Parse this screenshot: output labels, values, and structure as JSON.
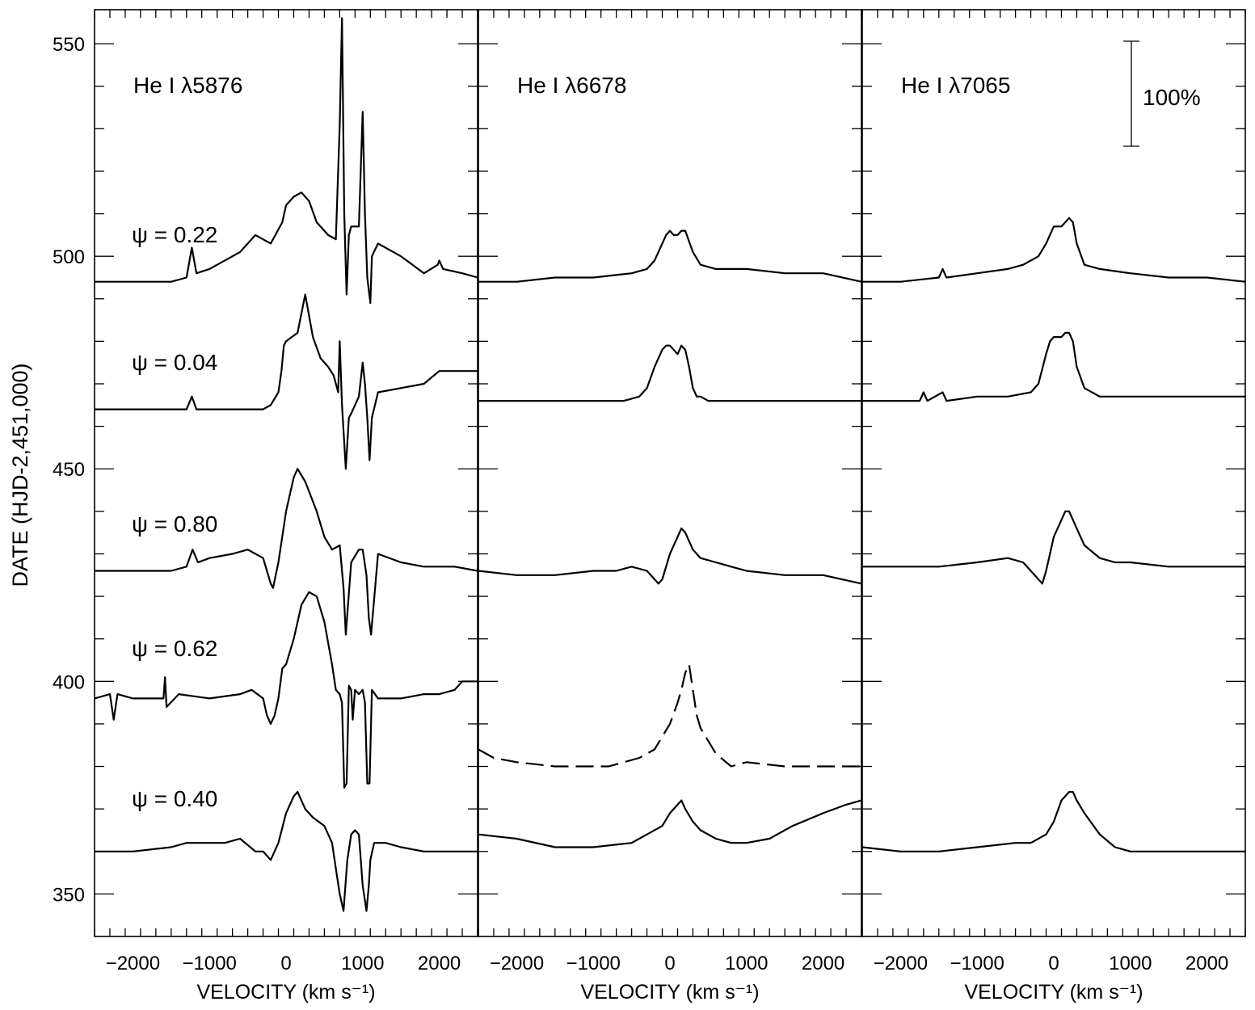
{
  "chart_data": {
    "type": "line",
    "ylabel": "DATE (HJD-2,451,000)",
    "ylim": [
      340,
      558
    ],
    "yticks": [
      350,
      400,
      450,
      500,
      550
    ],
    "scale_bar_label": "100%",
    "phase_labels": [
      "ψ = 0.22",
      "ψ = 0.04",
      "ψ = 0.80",
      "ψ = 0.62",
      "ψ = 0.40"
    ],
    "panels": [
      {
        "line": "He I λ5876",
        "xlabel": "VELOCITY (km s⁻¹)",
        "xlim": [
          -2500,
          2500
        ],
        "xticks": [
          -2000,
          -1000,
          0,
          1000,
          2000
        ],
        "series": [
          {
            "phase": "ψ = 0.22",
            "x": [
              -2500,
              -2000,
              -1500,
              -1300,
              -1230,
              -1170,
              -1000,
              -600,
              -400,
              -200,
              -50,
              0,
              100,
              200,
              300,
              400,
              550,
              650,
              700,
              730,
              760,
              790,
              820,
              850,
              950,
              1000,
              1030,
              1060,
              1100,
              1120,
              1200,
              1500,
              1800,
              1980,
              2000,
              2050,
              2300,
              2500
            ],
            "y": [
              494,
              494,
              494,
              495,
              502,
              496,
              497,
              501,
              505,
              503,
              508,
              512,
              514,
              515,
              513,
              508,
              505,
              504,
              531,
              556,
              510,
              491,
              505,
              507,
              507,
              534,
              510,
              495,
              489,
              500,
              503,
              500,
              496,
              498,
              499,
              497,
              496,
              495
            ]
          },
          {
            "phase": "ψ = 0.04",
            "x": [
              -2500,
              -2000,
              -1500,
              -1300,
              -1230,
              -1170,
              -1000,
              -600,
              -300,
              -200,
              -100,
              -60,
              -30,
              0,
              150,
              250,
              350,
              450,
              550,
              620,
              680,
              700,
              730,
              780,
              820,
              850,
              950,
              1000,
              1030,
              1060,
              1090,
              1120,
              1200,
              1500,
              1800,
              2000,
              2200,
              2500
            ],
            "y": [
              464,
              464,
              464,
              464,
              467,
              464,
              464,
              464,
              464,
              465,
              468,
              473,
              479,
              480,
              482,
              491,
              481,
              476,
              474,
              472,
              468,
              480,
              465,
              450,
              462,
              463,
              467,
              475,
              470,
              462,
              452,
              462,
              468,
              469,
              470,
              473,
              473,
              473
            ]
          },
          {
            "phase": "ψ = 0.80",
            "x": [
              -2500,
              -2000,
              -1500,
              -1300,
              -1220,
              -1150,
              -1000,
              -700,
              -500,
              -300,
              -200,
              -170,
              -100,
              0,
              100,
              150,
              250,
              400,
              500,
              600,
              700,
              750,
              780,
              850,
              950,
              1000,
              1050,
              1080,
              1110,
              1200,
              1500,
              1800,
              2000,
              2200,
              2500
            ],
            "y": [
              426,
              426,
              426,
              427,
              431,
              428,
              429,
              430,
              431,
              429,
              423,
              422,
              428,
              440,
              448,
              450,
              447,
              440,
              434,
              431,
              432,
              422,
              411,
              428,
              431,
              431,
              425,
              415,
              411,
              430,
              428,
              427,
              427,
              427,
              426
            ]
          },
          {
            "phase": "ψ = 0.62",
            "x": [
              -2500,
              -2300,
              -2250,
              -2200,
              -2000,
              -1600,
              -1580,
              -1560,
              -1400,
              -1000,
              -600,
              -450,
              -300,
              -250,
              -200,
              -150,
              -100,
              -50,
              0,
              100,
              200,
              300,
              400,
              500,
              600,
              650,
              700,
              730,
              760,
              790,
              820,
              850,
              870,
              900,
              950,
              1000,
              1030,
              1060,
              1090,
              1120,
              1200,
              1500,
              1800,
              2000,
              2200,
              2300,
              2500
            ],
            "y": [
              396,
              397,
              391,
              397,
              396,
              396,
              401,
              394,
              397,
              396,
              397,
              398,
              396,
              392,
              390,
              392,
              396,
              403,
              404,
              410,
              418,
              421,
              420,
              414,
              404,
              398,
              397,
              395,
              375,
              376,
              399,
              398,
              391,
              398,
              397,
              398,
              395,
              376,
              376,
              398,
              396,
              396,
              397,
              397,
              398,
              400,
              400
            ]
          },
          {
            "phase": "ψ = 0.40",
            "x": [
              -2500,
              -2000,
              -1500,
              -1300,
              -1000,
              -800,
              -600,
              -400,
              -300,
              -200,
              -100,
              0,
              100,
              150,
              250,
              350,
              500,
              600,
              650,
              700,
              750,
              800,
              850,
              900,
              950,
              1000,
              1050,
              1080,
              1100,
              1150,
              1300,
              1500,
              1800,
              2000,
              2200,
              2500
            ],
            "y": [
              360,
              360,
              361,
              362,
              362,
              362,
              363,
              360,
              360,
              358,
              362,
              369,
              373,
              374,
              370,
              368,
              366,
              362,
              356,
              350,
              346,
              358,
              364,
              365,
              364,
              352,
              346,
              352,
              358,
              362,
              362,
              361,
              360,
              360,
              360,
              360
            ]
          }
        ]
      },
      {
        "line": "He I λ6678",
        "xlabel": "VELOCITY (km s⁻¹)",
        "xlim": [
          -2500,
          2500
        ],
        "xticks": [
          -2000,
          -1000,
          0,
          1000,
          2000
        ],
        "series": [
          {
            "phase": "ψ = 0.22",
            "x": [
              -2500,
              -2000,
              -1500,
              -1000,
              -500,
              -300,
              -200,
              -100,
              -50,
              0,
              50,
              100,
              150,
              200,
              300,
              400,
              600,
              1000,
              1500,
              2000,
              2500
            ],
            "y": [
              494,
              494,
              495,
              495,
              496,
              497,
              499,
              503,
              505,
              506,
              505,
              505,
              506,
              506,
              501,
              498,
              497,
              497,
              496,
              496,
              494
            ]
          },
          {
            "phase": "ψ = 0.04",
            "x": [
              -2500,
              -2000,
              -1500,
              -1000,
              -800,
              -600,
              -400,
              -300,
              -200,
              -100,
              -50,
              0,
              50,
              100,
              150,
              200,
              250,
              300,
              350,
              400,
              500,
              600,
              1000,
              1500,
              2000,
              2500
            ],
            "y": [
              466,
              466,
              466,
              466,
              466,
              466,
              467,
              469,
              474,
              478,
              479,
              479,
              478,
              477,
              479,
              478,
              474,
              469,
              467,
              467,
              466,
              466,
              466,
              466,
              466,
              466
            ]
          },
          {
            "phase": "ψ = 0.80",
            "x": [
              -2500,
              -2000,
              -1500,
              -1000,
              -700,
              -500,
              -300,
              -200,
              -150,
              -100,
              0,
              100,
              150,
              200,
              300,
              400,
              600,
              800,
              1000,
              1500,
              2000,
              2500
            ],
            "y": [
              426,
              425,
              425,
              426,
              426,
              427,
              426,
              424,
              423,
              424,
              430,
              434,
              436,
              435,
              431,
              429,
              428,
              427,
              426,
              425,
              425,
              423
            ]
          },
          {
            "phase": "ψ = 0.62",
            "dashed": true,
            "x": [
              -2500,
              -2300,
              -2000,
              -1500,
              -1000,
              -800,
              -600,
              -400,
              -200,
              -100,
              0,
              100,
              150,
              200,
              250,
              300,
              350,
              400,
              500,
              600,
              800,
              1000,
              1500,
              2000,
              2500
            ],
            "y": [
              384,
              382,
              381,
              380,
              380,
              380,
              381,
              382,
              384,
              387,
              390,
              395,
              398,
              402,
              404,
              398,
              392,
              389,
              386,
              383,
              380,
              381,
              380,
              380,
              380
            ]
          },
          {
            "phase": "ψ = 0.40",
            "x": [
              -2500,
              -2000,
              -1500,
              -1000,
              -500,
              -300,
              -100,
              0,
              100,
              150,
              200,
              300,
              400,
              600,
              800,
              1000,
              1300,
              1600,
              2000,
              2300,
              2500
            ],
            "y": [
              364,
              363,
              361,
              361,
              362,
              364,
              366,
              369,
              371,
              372,
              370,
              367,
              365,
              363,
              362,
              362,
              363,
              366,
              369,
              371,
              372
            ]
          }
        ]
      },
      {
        "line": "He I λ7065",
        "xlabel": "VELOCITY (km s⁻¹)",
        "xlim": [
          -2500,
          2500
        ],
        "xticks": [
          -2000,
          -1000,
          0,
          1000,
          2000
        ],
        "series": [
          {
            "phase": "ψ = 0.22",
            "x": [
              -2500,
              -2000,
              -1500,
              -1450,
              -1400,
              -1000,
              -600,
              -400,
              -200,
              -100,
              0,
              100,
              150,
              200,
              250,
              300,
              400,
              600,
              1000,
              1500,
              2000,
              2500
            ],
            "y": [
              494,
              494,
              495,
              497,
              495,
              496,
              497,
              498,
              500,
              503,
              507,
              507,
              508,
              509,
              508,
              503,
              498,
              497,
              496,
              495,
              495,
              494
            ]
          },
          {
            "phase": "ψ = 0.04",
            "x": [
              -2500,
              -2000,
              -1750,
              -1700,
              -1650,
              -1450,
              -1400,
              -1000,
              -600,
              -300,
              -200,
              -100,
              -50,
              0,
              100,
              150,
              200,
              250,
              300,
              400,
              600,
              1000,
              1500,
              2000,
              2500
            ],
            "y": [
              466,
              466,
              466,
              468,
              466,
              468,
              466,
              467,
              467,
              468,
              470,
              477,
              480,
              481,
              481,
              482,
              482,
              480,
              474,
              469,
              467,
              467,
              467,
              467,
              467
            ]
          },
          {
            "phase": "ψ = 0.80",
            "x": [
              -2500,
              -2000,
              -1500,
              -1000,
              -600,
              -400,
              -300,
              -200,
              -150,
              -100,
              -50,
              0,
              100,
              150,
              200,
              300,
              400,
              600,
              800,
              1000,
              1500,
              2000,
              2500
            ],
            "y": [
              427,
              427,
              427,
              428,
              429,
              428,
              426,
              424,
              423,
              426,
              430,
              434,
              438,
              440,
              440,
              436,
              432,
              429,
              428,
              428,
              427,
              427,
              427
            ]
          },
          {
            "phase": "ψ = 0.40",
            "x": [
              -2500,
              -2000,
              -1500,
              -1000,
              -500,
              -300,
              -100,
              0,
              100,
              200,
              250,
              300,
              400,
              600,
              800,
              1000,
              1500,
              2000,
              2500
            ],
            "y": [
              361,
              360,
              360,
              361,
              362,
              362,
              364,
              367,
              372,
              374,
              374,
              372,
              369,
              364,
              361,
              360,
              360,
              360,
              360
            ]
          }
        ]
      }
    ]
  }
}
